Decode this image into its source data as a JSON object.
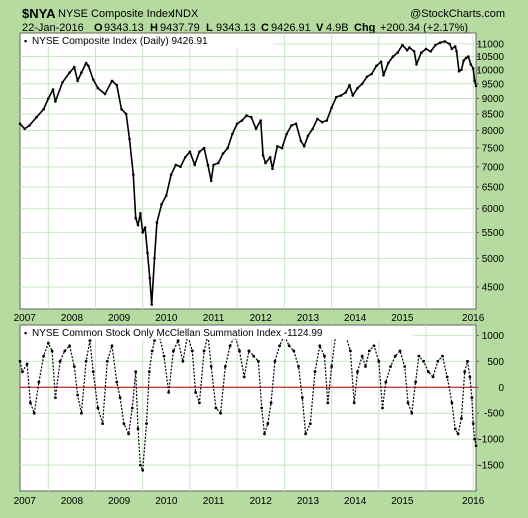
{
  "header": {
    "symbol": "$NYA",
    "name": "NYSE Composite Index",
    "exchange": "INDX",
    "date": "22-Jan-2016",
    "open_label": "O",
    "open": "9343.13",
    "high_label": "H",
    "high": "9437.79",
    "low_label": "L",
    "low": "9343.13",
    "close_label": "C",
    "close": "9426.91",
    "volume_label": "V",
    "volume": "4.9B",
    "change_label": "Chg",
    "change": "+200.34 (+2.17%)",
    "watermark": "@StockCharts.com"
  },
  "colors": {
    "frame_bg": "#b6dba0",
    "panel_bg": "#ffffff",
    "grid": "#c8e6c4",
    "price": "#000000",
    "zero_line": "#b40000",
    "summation": "#000000"
  },
  "chart_data": [
    {
      "type": "line",
      "title": "NYSE Composite Index (Daily) 9426.91",
      "legend_marker": "▪",
      "y_scale": "log",
      "ylim": [
        4150,
        11450
      ],
      "yticks": [
        4500,
        5000,
        5500,
        6000,
        6500,
        7000,
        7500,
        8000,
        8500,
        9000,
        9500,
        10000,
        10500,
        11000
      ],
      "ytick_labels": [
        "4500",
        "5000",
        "5500",
        "6000",
        "6500",
        "7000",
        "7500",
        "8000",
        "8500",
        "9000",
        "9500",
        "10000",
        "10500",
        "11000"
      ],
      "xlim": [
        2006.4,
        2016.06
      ],
      "xticks": [
        2007,
        2008,
        2009,
        2010,
        2011,
        2012,
        2013,
        2014,
        2015,
        2016
      ],
      "xtick_labels": [
        "2007",
        "2008",
        "2009",
        "2010",
        "2011",
        "2012",
        "2013",
        "2014",
        "2015",
        "2016"
      ],
      "grid": true,
      "series": [
        {
          "x": [
            2006.4,
            2006.5,
            2006.6,
            2006.75,
            2006.9,
            2007.0,
            2007.1,
            2007.15,
            2007.3,
            2007.45,
            2007.55,
            2007.62,
            2007.7,
            2007.8,
            2007.85,
            2007.95,
            2008.05,
            2008.2,
            2008.35,
            2008.45,
            2008.55,
            2008.65,
            2008.72,
            2008.8,
            2008.85,
            2008.9,
            2008.95,
            2009.0,
            2009.05,
            2009.1,
            2009.15,
            2009.19,
            2009.25,
            2009.3,
            2009.4,
            2009.5,
            2009.6,
            2009.7,
            2009.8,
            2009.9,
            2010.0,
            2010.1,
            2010.2,
            2010.3,
            2010.38,
            2010.45,
            2010.5,
            2010.6,
            2010.7,
            2010.8,
            2010.9,
            2011.0,
            2011.1,
            2011.2,
            2011.3,
            2011.4,
            2011.5,
            2011.55,
            2011.6,
            2011.7,
            2011.75,
            2011.85,
            2011.95,
            2012.05,
            2012.15,
            2012.25,
            2012.35,
            2012.42,
            2012.5,
            2012.6,
            2012.7,
            2012.8,
            2012.9,
            2013.0,
            2013.1,
            2013.2,
            2013.3,
            2013.38,
            2013.45,
            2013.55,
            2013.65,
            2013.75,
            2013.85,
            2013.95,
            2014.05,
            2014.1,
            2014.2,
            2014.3,
            2014.4,
            2014.5,
            2014.6,
            2014.65,
            2014.75,
            2014.8,
            2014.9,
            2015.0,
            2015.1,
            2015.2,
            2015.3,
            2015.4,
            2015.5,
            2015.55,
            2015.62,
            2015.65,
            2015.7,
            2015.75,
            2015.8,
            2015.85,
            2015.9,
            2015.95,
            2016.0,
            2016.03,
            2016.06
          ],
          "y": [
            8200,
            8050,
            8150,
            8400,
            8650,
            9000,
            9300,
            8900,
            9550,
            9900,
            10100,
            9600,
            9900,
            10250,
            10150,
            9650,
            9350,
            9150,
            9600,
            9450,
            8650,
            8500,
            7750,
            6800,
            5800,
            5650,
            5900,
            5500,
            5600,
            5100,
            4650,
            4220,
            5000,
            5700,
            6100,
            6300,
            6800,
            7050,
            7000,
            7250,
            7400,
            7050,
            7400,
            7500,
            7050,
            6650,
            7050,
            7100,
            7350,
            7500,
            7900,
            8200,
            8300,
            8450,
            8400,
            8050,
            8300,
            7300,
            7100,
            7250,
            6950,
            7550,
            7500,
            7900,
            8150,
            8200,
            7700,
            7550,
            7850,
            8050,
            8350,
            8250,
            8300,
            8700,
            9050,
            9100,
            9200,
            9450,
            9100,
            9350,
            9500,
            9750,
            9850,
            10150,
            10300,
            9800,
            10250,
            10500,
            10650,
            10950,
            10750,
            10850,
            10700,
            10200,
            10650,
            10800,
            10700,
            10950,
            11050,
            11100,
            11000,
            10800,
            10900,
            10700,
            9950,
            10000,
            10350,
            10450,
            10500,
            10200,
            10050,
            9600,
            9426.91
          ]
        }
      ]
    },
    {
      "type": "line",
      "title": "NYSE Common Stock Only McClellan Summation Index -1124.99",
      "legend_marker": "▪",
      "ylim": [
        -2000,
        1200
      ],
      "yticks": [
        -1500,
        -1000,
        -500,
        0,
        500,
        1000
      ],
      "ytick_labels": [
        "-1500",
        "-1000",
        "-500",
        "0",
        "500",
        "1000"
      ],
      "zero_line": 0,
      "xlim": [
        2006.4,
        2016.06
      ],
      "xticks": [
        2007,
        2008,
        2009,
        2010,
        2011,
        2012,
        2013,
        2014,
        2015,
        2016
      ],
      "xtick_labels": [
        "2007",
        "2008",
        "2009",
        "2010",
        "2011",
        "2012",
        "2013",
        "2014",
        "2015",
        "2016"
      ],
      "grid": true,
      "series": [
        {
          "x": [
            2006.4,
            2006.45,
            2006.55,
            2006.62,
            2006.7,
            2006.8,
            2006.9,
            2007.0,
            2007.08,
            2007.15,
            2007.25,
            2007.35,
            2007.45,
            2007.55,
            2007.62,
            2007.7,
            2007.8,
            2007.88,
            2007.95,
            2008.05,
            2008.15,
            2008.25,
            2008.35,
            2008.45,
            2008.52,
            2008.6,
            2008.7,
            2008.78,
            2008.85,
            2008.9,
            2008.95,
            2009.0,
            2009.08,
            2009.14,
            2009.2,
            2009.25,
            2009.35,
            2009.45,
            2009.55,
            2009.65,
            2009.75,
            2009.85,
            2009.95,
            2010.05,
            2010.12,
            2010.2,
            2010.3,
            2010.38,
            2010.45,
            2010.55,
            2010.65,
            2010.75,
            2010.85,
            2010.95,
            2011.05,
            2011.15,
            2011.25,
            2011.35,
            2011.45,
            2011.52,
            2011.58,
            2011.65,
            2011.72,
            2011.8,
            2011.9,
            2012.0,
            2012.1,
            2012.2,
            2012.3,
            2012.38,
            2012.45,
            2012.55,
            2012.65,
            2012.75,
            2012.85,
            2012.92,
            2013.0,
            2013.1,
            2013.2,
            2013.3,
            2013.4,
            2013.48,
            2013.55,
            2013.65,
            2013.72,
            2013.8,
            2013.9,
            2014.0,
            2014.08,
            2014.15,
            2014.25,
            2014.35,
            2014.45,
            2014.55,
            2014.62,
            2014.7,
            2014.78,
            2014.85,
            2014.95,
            2015.05,
            2015.15,
            2015.25,
            2015.35,
            2015.45,
            2015.55,
            2015.62,
            2015.68,
            2015.75,
            2015.82,
            2015.88,
            2015.93,
            2015.97,
            2016.0,
            2016.03,
            2016.06
          ],
          "y": [
            500,
            300,
            450,
            -300,
            -500,
            100,
            600,
            850,
            700,
            -200,
            500,
            700,
            800,
            400,
            -150,
            -500,
            500,
            900,
            300,
            -400,
            -700,
            500,
            800,
            100,
            -200,
            -700,
            -900,
            -400,
            300,
            -800,
            -1500,
            -1600,
            -700,
            300,
            700,
            900,
            1000,
            600,
            -100,
            700,
            900,
            500,
            1000,
            700,
            -100,
            -300,
            700,
            1000,
            400,
            -400,
            -500,
            400,
            800,
            1000,
            700,
            200,
            700,
            600,
            500,
            -400,
            -900,
            -700,
            -300,
            500,
            800,
            1000,
            800,
            700,
            400,
            -200,
            -900,
            -700,
            300,
            800,
            600,
            -300,
            400,
            1100,
            1000,
            1000,
            700,
            -300,
            300,
            600,
            400,
            700,
            800,
            500,
            -400,
            100,
            400,
            600,
            700,
            400,
            -300,
            -500,
            100,
            600,
            500,
            300,
            200,
            500,
            600,
            200,
            -300,
            -800,
            -900,
            -600,
            300,
            500,
            200,
            -200,
            -700,
            -1000,
            -1124.99
          ]
        }
      ]
    }
  ]
}
